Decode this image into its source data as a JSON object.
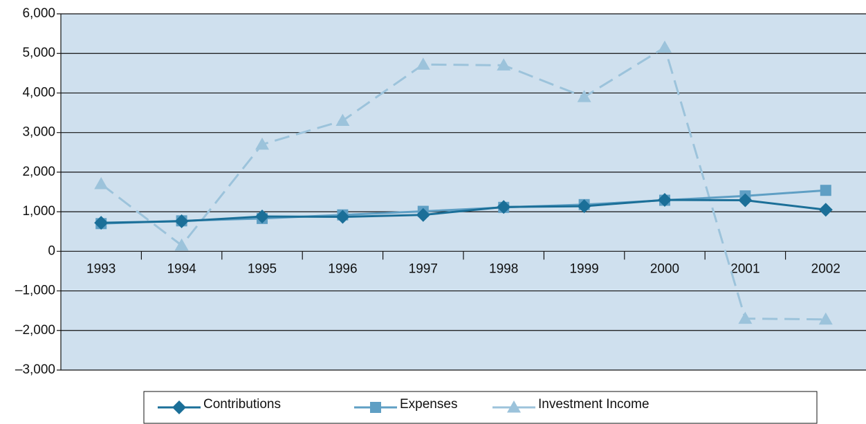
{
  "chart_data": {
    "type": "line",
    "categories": [
      "1993",
      "1994",
      "1995",
      "1996",
      "1997",
      "1998",
      "1999",
      "2000",
      "2001",
      "2002"
    ],
    "series": [
      {
        "name": "Contributions",
        "color": "#1b6f98",
        "marker": "diamond",
        "dashed": false,
        "values": [
          720,
          760,
          880,
          870,
          920,
          1120,
          1140,
          1300,
          1290,
          1050
        ]
      },
      {
        "name": "Expenses",
        "color": "#5f9fc4",
        "marker": "square",
        "dashed": false,
        "values": [
          700,
          770,
          830,
          920,
          1010,
          1110,
          1180,
          1290,
          1400,
          1540
        ]
      },
      {
        "name": "Investment Income",
        "color": "#9cc3db",
        "marker": "triangle",
        "dashed": true,
        "values": [
          1700,
          150,
          2700,
          3300,
          4720,
          4700,
          3900,
          5150,
          -1700,
          -1720
        ]
      }
    ],
    "ylim": [
      -3000,
      6000
    ],
    "yticks": [
      {
        "value": -3000,
        "label": "–3,000"
      },
      {
        "value": -2000,
        "label": "–2,000"
      },
      {
        "value": -1000,
        "label": "–1,000"
      },
      0,
      {
        "value": 1000,
        "label": "1,000"
      },
      {
        "value": 2000,
        "label": "2,000"
      },
      {
        "value": 3000,
        "label": "3,000"
      },
      {
        "value": 4000,
        "label": "4,000"
      },
      {
        "value": 5000,
        "label": "5,000"
      },
      {
        "value": 6000,
        "label": "6,000"
      }
    ],
    "grid": true,
    "legend": "bottom"
  }
}
